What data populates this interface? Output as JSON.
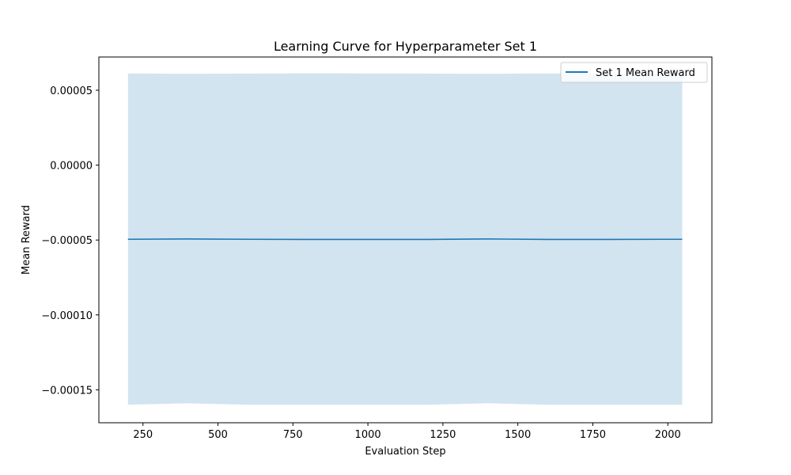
{
  "chart_data": {
    "type": "line",
    "title": "Learning Curve for Hyperparameter Set 1",
    "xlabel": "Evaluation Step",
    "ylabel": "Mean Reward",
    "xlim": [
      103,
      2147
    ],
    "ylim": [
      -0.000172,
      7.22e-05
    ],
    "xticks": [
      250,
      500,
      750,
      1000,
      1250,
      1500,
      1750,
      2000
    ],
    "xtick_labels": [
      "250",
      "500",
      "750",
      "1000",
      "1250",
      "1500",
      "1750",
      "2000"
    ],
    "yticks": [
      5e-05,
      0.0,
      -5e-05,
      -0.0001,
      -0.00015
    ],
    "ytick_labels": [
      "0.00005",
      "0.00000",
      "−0.00005",
      "−0.00010",
      "−0.00015"
    ],
    "grid": false,
    "legend_position": "top-right",
    "series": [
      {
        "name": "Set 1 Mean Reward",
        "color": "#1f77b4",
        "band_color": "#1f77b4",
        "x": [
          200,
          400,
          600,
          800,
          1000,
          1200,
          1400,
          1600,
          1800,
          2000,
          2048
        ],
        "y": [
          -4.95e-05,
          -4.93e-05,
          -4.95e-05,
          -4.96e-05,
          -4.96e-05,
          -4.96e-05,
          -4.93e-05,
          -4.96e-05,
          -4.96e-05,
          -4.95e-05,
          -4.95e-05
        ],
        "lower": [
          -0.00016,
          -0.000159,
          -0.00016,
          -0.00016,
          -0.00016,
          -0.00016,
          -0.000159,
          -0.00016,
          -0.00016,
          -0.00016,
          -0.00016
        ],
        "upper": [
          6.12e-05,
          6.1e-05,
          6.11e-05,
          6.13e-05,
          6.12e-05,
          6.11e-05,
          6.1e-05,
          6.12e-05,
          6.12e-05,
          6.11e-05,
          6.11e-05
        ]
      }
    ]
  }
}
